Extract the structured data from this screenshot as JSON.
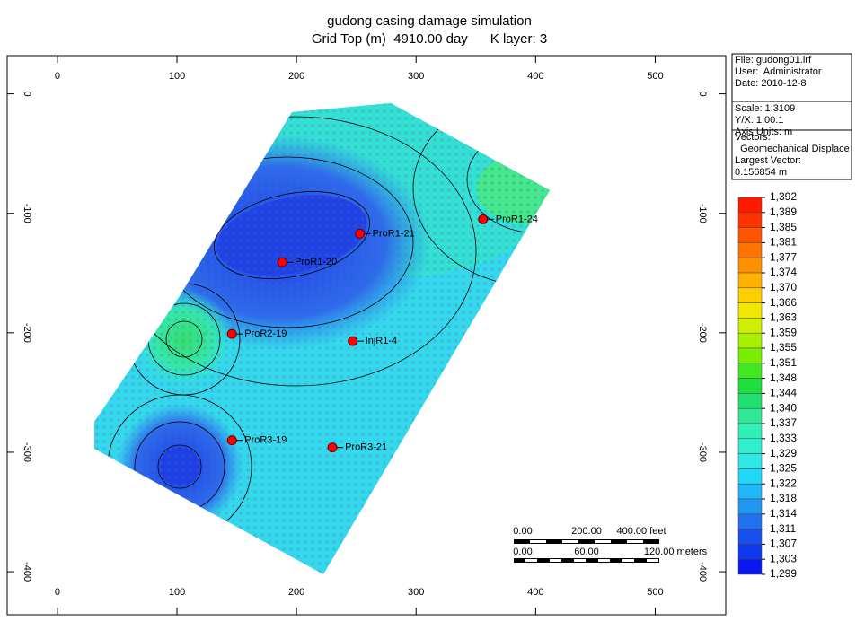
{
  "chart_data": {
    "type": "contour",
    "title": "gudong casing damage simulation",
    "subtitle": "Grid Top (m)  4910.00 day      K layer: 3",
    "xlim": [
      -42,
      559
    ],
    "ylim": [
      -436,
      32
    ],
    "xticks": [
      0,
      100,
      200,
      300,
      400,
      500
    ],
    "yticks": [
      0,
      -100,
      -200,
      -300,
      -400
    ],
    "wells": [
      {
        "name": "ProR1-24",
        "x": 356,
        "y": -105
      },
      {
        "name": "ProR1-21",
        "x": 253,
        "y": -117
      },
      {
        "name": "ProR1-20",
        "x": 188,
        "y": -141
      },
      {
        "name": "ProR2-19",
        "x": 146,
        "y": -201
      },
      {
        "name": "InjR1-4",
        "x": 247,
        "y": -207
      },
      {
        "name": "ProR3-19",
        "x": 146,
        "y": -290
      },
      {
        "name": "ProR3-21",
        "x": 230,
        "y": -296
      }
    ],
    "well_color": "#ff0000",
    "info": [
      "File: gudong01.irf",
      "User:  Administrator",
      "Date: 2010-12-8",
      "Scale: 1:3109",
      "Y/X: 1.00:1",
      "Axis Units: m",
      "Vectors:",
      "  Geomechanical Displace",
      "Largest Vector:",
      "0.156854 m"
    ],
    "colorbar_ticks": [
      {
        "value": 1392,
        "label": "1,392"
      },
      {
        "value": 1389,
        "label": "1,389"
      },
      {
        "value": 1385,
        "label": "1,385"
      },
      {
        "value": 1381,
        "label": "1,381"
      },
      {
        "value": 1377,
        "label": "1,377"
      },
      {
        "value": 1374,
        "label": "1,374"
      },
      {
        "value": 1370,
        "label": "1,370"
      },
      {
        "value": 1366,
        "label": "1,366"
      },
      {
        "value": 1363,
        "label": "1,363"
      },
      {
        "value": 1359,
        "label": "1,359"
      },
      {
        "value": 1355,
        "label": "1,355"
      },
      {
        "value": 1351,
        "label": "1,351"
      },
      {
        "value": 1348,
        "label": "1,348"
      },
      {
        "value": 1344,
        "label": "1,344"
      },
      {
        "value": 1340,
        "label": "1,340"
      },
      {
        "value": 1337,
        "label": "1,337"
      },
      {
        "value": 1333,
        "label": "1,333"
      },
      {
        "value": 1329,
        "label": "1,329"
      },
      {
        "value": 1325,
        "label": "1,325"
      },
      {
        "value": 1322,
        "label": "1,322"
      },
      {
        "value": 1318,
        "label": "1,318"
      },
      {
        "value": 1314,
        "label": "1,314"
      },
      {
        "value": 1311,
        "label": "1,311"
      },
      {
        "value": 1307,
        "label": "1,307"
      },
      {
        "value": 1303,
        "label": "1,303"
      },
      {
        "value": 1299,
        "label": "1,299"
      }
    ],
    "colorbar_colors": [
      "#ff1a00",
      "#ff3300",
      "#ff5500",
      "#ff7300",
      "#ff9000",
      "#ffb000",
      "#ffd000",
      "#f0e800",
      "#d0f000",
      "#a8f000",
      "#78ee00",
      "#40e820",
      "#20e040",
      "#20e070",
      "#30e898",
      "#30f0b8",
      "#30f0d0",
      "#30e8e8",
      "#20d8f8",
      "#20b8f8",
      "#2098f0",
      "#2070f0",
      "#1850f0",
      "#1038f0",
      "#0818f0"
    ],
    "scale_feet": [
      "0.00",
      "200.00",
      "400.00 feet"
    ],
    "scale_meters": [
      "0.00",
      "60.00",
      "120.00 meters"
    ]
  }
}
